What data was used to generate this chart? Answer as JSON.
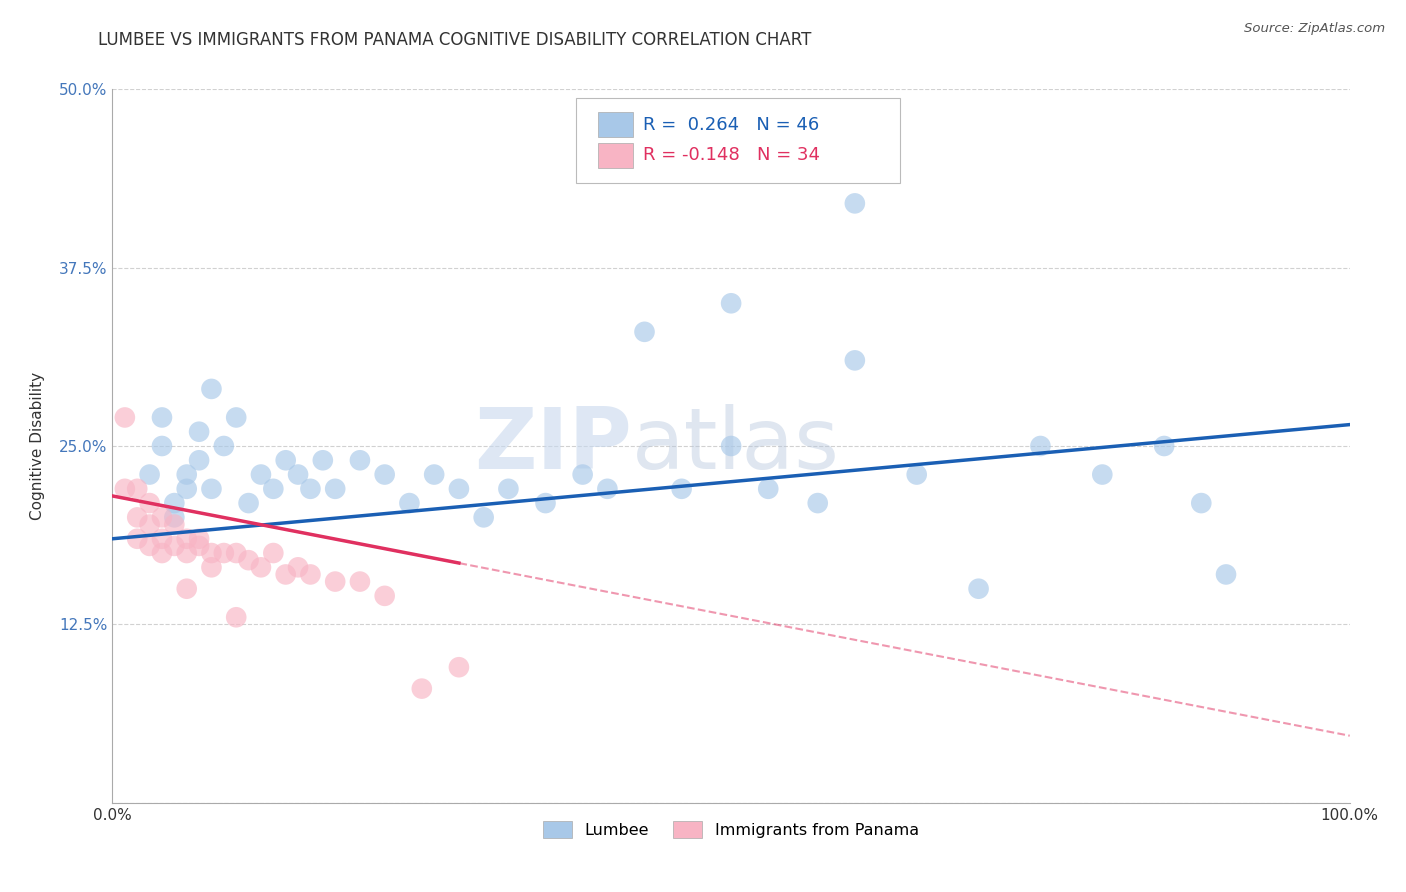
{
  "title": "LUMBEE VS IMMIGRANTS FROM PANAMA COGNITIVE DISABILITY CORRELATION CHART",
  "source": "Source: ZipAtlas.com",
  "ylabel": "Cognitive Disability",
  "xlim": [
    0,
    1.0
  ],
  "ylim": [
    0,
    0.5
  ],
  "yticks": [
    0.0,
    0.125,
    0.25,
    0.375,
    0.5
  ],
  "ytick_labels": [
    "",
    "12.5%",
    "25.0%",
    "37.5%",
    "50.0%"
  ],
  "xtick_labels": [
    "0.0%",
    "100.0%"
  ],
  "lumbee_R": 0.264,
  "lumbee_N": 46,
  "panama_R": -0.148,
  "panama_N": 34,
  "lumbee_color": "#a8c8e8",
  "lumbee_line_color": "#1a5fb4",
  "panama_color": "#f8b4c4",
  "panama_line_color": "#e03060",
  "background_color": "#ffffff",
  "grid_color": "#cccccc",
  "watermark_zip": "ZIP",
  "watermark_atlas": "atlas",
  "lumbee_scatter_x": [
    0.03,
    0.04,
    0.04,
    0.05,
    0.05,
    0.06,
    0.06,
    0.07,
    0.07,
    0.08,
    0.08,
    0.09,
    0.1,
    0.11,
    0.12,
    0.13,
    0.14,
    0.15,
    0.16,
    0.17,
    0.18,
    0.2,
    0.22,
    0.24,
    0.26,
    0.28,
    0.3,
    0.32,
    0.35,
    0.38,
    0.4,
    0.43,
    0.46,
    0.5,
    0.53,
    0.57,
    0.6,
    0.65,
    0.7,
    0.75,
    0.8,
    0.85,
    0.88,
    0.9,
    0.5,
    0.6
  ],
  "lumbee_scatter_y": [
    0.23,
    0.25,
    0.27,
    0.21,
    0.2,
    0.23,
    0.22,
    0.24,
    0.26,
    0.29,
    0.22,
    0.25,
    0.27,
    0.21,
    0.23,
    0.22,
    0.24,
    0.23,
    0.22,
    0.24,
    0.22,
    0.24,
    0.23,
    0.21,
    0.23,
    0.22,
    0.2,
    0.22,
    0.21,
    0.23,
    0.22,
    0.33,
    0.22,
    0.25,
    0.22,
    0.21,
    0.42,
    0.23,
    0.15,
    0.25,
    0.23,
    0.25,
    0.21,
    0.16,
    0.35,
    0.31
  ],
  "panama_scatter_x": [
    0.01,
    0.01,
    0.02,
    0.02,
    0.02,
    0.03,
    0.03,
    0.03,
    0.04,
    0.04,
    0.04,
    0.05,
    0.05,
    0.06,
    0.06,
    0.07,
    0.07,
    0.08,
    0.08,
    0.09,
    0.1,
    0.11,
    0.12,
    0.13,
    0.14,
    0.15,
    0.16,
    0.18,
    0.2,
    0.22,
    0.25,
    0.28,
    0.06,
    0.1
  ],
  "panama_scatter_y": [
    0.22,
    0.27,
    0.2,
    0.22,
    0.185,
    0.195,
    0.18,
    0.21,
    0.185,
    0.2,
    0.175,
    0.195,
    0.18,
    0.185,
    0.175,
    0.185,
    0.18,
    0.175,
    0.165,
    0.175,
    0.175,
    0.17,
    0.165,
    0.175,
    0.16,
    0.165,
    0.16,
    0.155,
    0.155,
    0.145,
    0.08,
    0.095,
    0.15,
    0.13
  ],
  "lumbee_line_x0": 0.0,
  "lumbee_line_y0": 0.185,
  "lumbee_line_x1": 1.0,
  "lumbee_line_y1": 0.265,
  "panama_line_solid_x0": 0.0,
  "panama_line_solid_y0": 0.215,
  "panama_line_solid_x1": 0.28,
  "panama_line_solid_y1": 0.168,
  "panama_line_dash_x0": 0.0,
  "panama_line_dash_y0": 0.215,
  "panama_line_dash_x1": 1.0,
  "panama_line_dash_y1": 0.047,
  "title_fontsize": 12,
  "label_fontsize": 11,
  "tick_fontsize": 11,
  "legend_fontsize": 13
}
